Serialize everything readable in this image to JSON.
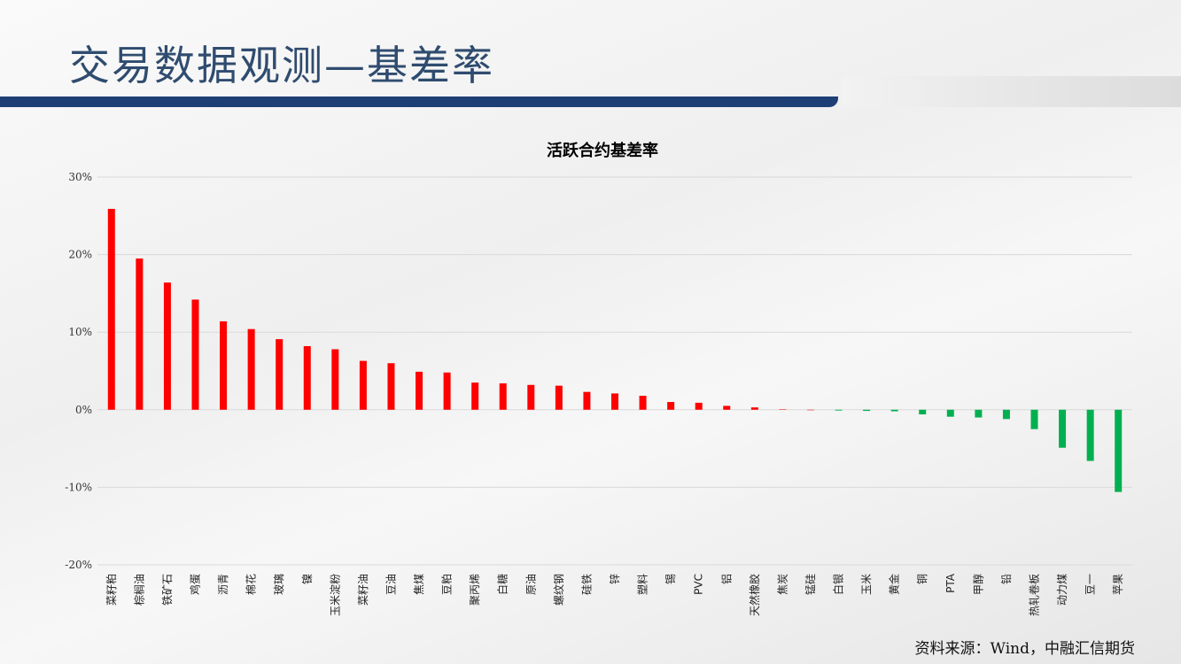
{
  "header": {
    "title": "交易数据观测—基差率"
  },
  "source_note": "资料来源：Wind，中融汇信期货",
  "colors": {
    "positive": "#ff0000",
    "negative": "#00b050",
    "title_text": "#2f4c6f",
    "header_bar": "#1e3f75",
    "grid": "#d9d9d9"
  },
  "chart_data": {
    "type": "bar",
    "title": "活跃合约基差率",
    "xlabel": "",
    "ylabel": "",
    "ylim": [
      -20,
      30
    ],
    "yticks": [
      "30%",
      "20%",
      "10%",
      "0%",
      "-10%",
      "-20%"
    ],
    "ytick_values": [
      30,
      20,
      10,
      0,
      -10,
      -20
    ],
    "grid": true,
    "legend": "none",
    "categories": [
      "菜籽粕",
      "棕榈油",
      "铁矿石",
      "鸡蛋",
      "沥青",
      "棉花",
      "玻璃",
      "镍",
      "玉米淀粉",
      "菜籽油",
      "豆油",
      "焦煤",
      "豆粕",
      "聚丙烯",
      "白糖",
      "原油",
      "螺纹钢",
      "硅铁",
      "锌",
      "塑料",
      "锡",
      "PVC",
      "铝",
      "天然橡胶",
      "焦炭",
      "锰硅",
      "白银",
      "玉米",
      "黄金",
      "铜",
      "PTA",
      "甲醇",
      "铅",
      "热轧卷板",
      "动力煤",
      "豆一",
      "苹果"
    ],
    "values": [
      25.9,
      19.5,
      16.4,
      14.2,
      11.4,
      10.4,
      9.1,
      8.2,
      7.8,
      6.3,
      6.0,
      4.9,
      4.8,
      3.5,
      3.4,
      3.2,
      3.1,
      2.3,
      2.1,
      1.8,
      1.0,
      0.9,
      0.5,
      0.3,
      0.05,
      0.0,
      -0.1,
      -0.15,
      -0.2,
      -0.6,
      -0.9,
      -1.0,
      -1.2,
      -2.5,
      -4.9,
      -6.6,
      -10.6
    ]
  }
}
